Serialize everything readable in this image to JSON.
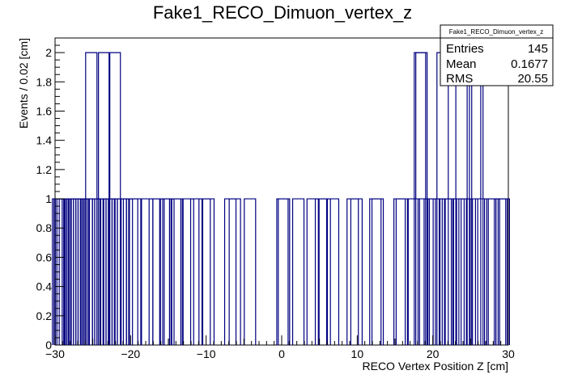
{
  "chart_data": {
    "type": "bar",
    "style": "histogram",
    "title": "Fake1_RECO_Dimuon_vertex_z",
    "xlabel": "RECO Vertex Position Z [cm]",
    "ylabel": "Events / 0.02 [cm]",
    "xlim": [
      -30,
      30
    ],
    "ylim": [
      0,
      2.1
    ],
    "xticks": [
      "−30",
      "−20",
      "−10",
      "0",
      "10",
      "20",
      "30"
    ],
    "xtick_values": [
      -30,
      -20,
      -10,
      0,
      10,
      20,
      30
    ],
    "yticks": [
      "0",
      "0.2",
      "0.4",
      "0.6",
      "0.8",
      "1",
      "1.2",
      "1.4",
      "1.6",
      "1.8",
      "2"
    ],
    "ytick_values": [
      0,
      0.2,
      0.4,
      0.6,
      0.8,
      1,
      1.2,
      1.4,
      1.6,
      1.8,
      2
    ],
    "bin_width": 0.02,
    "line_color": "#000080",
    "grid": false,
    "entries": [
      [
        -29.6,
        1
      ],
      [
        -29.4,
        1
      ],
      [
        -29.2,
        1
      ],
      [
        -29.0,
        1
      ],
      [
        -28.7,
        1
      ],
      [
        -28.3,
        1
      ],
      [
        -28.0,
        1
      ],
      [
        -27.7,
        1
      ],
      [
        -27.4,
        1
      ],
      [
        -27.1,
        1
      ],
      [
        -26.8,
        1
      ],
      [
        -26.5,
        1
      ],
      [
        -26.2,
        1
      ],
      [
        -25.8,
        1
      ],
      [
        -25.5,
        1
      ],
      [
        -25.2,
        2
      ],
      [
        -24.8,
        1
      ],
      [
        -24.3,
        1
      ],
      [
        -24.0,
        1
      ],
      [
        -23.7,
        1
      ],
      [
        -23.5,
        2
      ],
      [
        -23.2,
        1
      ],
      [
        -22.9,
        1
      ],
      [
        -22.5,
        1
      ],
      [
        -22.1,
        2
      ],
      [
        -21.7,
        1
      ],
      [
        -21.3,
        1
      ],
      [
        -21.0,
        1
      ],
      [
        -20.5,
        1
      ],
      [
        -19.8,
        1
      ],
      [
        -19.4,
        1
      ],
      [
        -17.8,
        1
      ],
      [
        -16.8,
        1
      ],
      [
        -16.3,
        1
      ],
      [
        -15.4,
        1
      ],
      [
        -15.0,
        1
      ],
      [
        -14.1,
        1
      ],
      [
        -13.8,
        1
      ],
      [
        -12.4,
        1
      ],
      [
        -11.3,
        1
      ],
      [
        -10.2,
        1
      ],
      [
        -9.7,
        1
      ],
      [
        -6.8,
        1
      ],
      [
        -6.2,
        1
      ],
      [
        -4.2,
        1
      ],
      [
        0.1,
        1
      ],
      [
        0.3,
        1
      ],
      [
        2.2,
        1
      ],
      [
        4.1,
        1
      ],
      [
        5.2,
        1
      ],
      [
        5.7,
        1
      ],
      [
        6.8,
        1
      ],
      [
        9.4,
        1
      ],
      [
        9.9,
        1
      ],
      [
        12.4,
        1
      ],
      [
        12.7,
        1
      ],
      [
        15.6,
        1
      ],
      [
        15.9,
        1
      ],
      [
        17.5,
        1
      ],
      [
        18.3,
        2
      ],
      [
        18.5,
        2
      ],
      [
        18.8,
        1
      ],
      [
        19.6,
        1
      ],
      [
        20.1,
        1
      ],
      [
        20.8,
        1
      ],
      [
        21.3,
        2
      ],
      [
        21.7,
        1
      ],
      [
        22.0,
        1
      ],
      [
        22.4,
        1
      ],
      [
        23.4,
        1
      ],
      [
        23.8,
        2
      ],
      [
        24.2,
        1
      ],
      [
        24.5,
        1
      ],
      [
        25.2,
        1
      ],
      [
        25.6,
        2
      ],
      [
        25.9,
        2
      ],
      [
        26.4,
        1
      ],
      [
        27.6,
        1
      ],
      [
        28.1,
        1
      ],
      [
        28.9,
        1
      ],
      [
        29.1,
        1
      ],
      [
        29.4,
        1
      ]
    ],
    "stats": {
      "name": "Fake1_RECO_Dimuon_vertex_z",
      "rows": [
        {
          "label": "Entries",
          "value": "145"
        },
        {
          "label": "Mean",
          "value": "0.1677"
        },
        {
          "label": "RMS",
          "value": "20.55"
        }
      ]
    }
  }
}
